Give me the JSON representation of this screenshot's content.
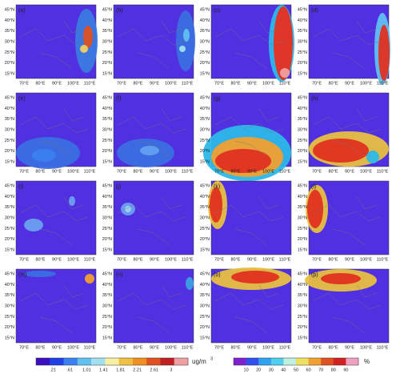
{
  "panels": [
    {
      "label": "(a)"
    },
    {
      "label": "(b)"
    },
    {
      "label": "(c)"
    },
    {
      "label": "(d)"
    },
    {
      "label": "(e)"
    },
    {
      "label": "(f)"
    },
    {
      "label": "(g)"
    },
    {
      "label": "(h)"
    },
    {
      "label": "(i)"
    },
    {
      "label": "(j)"
    },
    {
      "label": "(k)"
    },
    {
      "label": "(l)"
    },
    {
      "label": "(m)"
    },
    {
      "label": "(n)"
    },
    {
      "label": "(o)"
    },
    {
      "label": "(p)"
    }
  ],
  "lat_ticks": [
    "45°N",
    "40°N",
    "35°N",
    "30°N",
    "25°N",
    "20°N",
    "15°N"
  ],
  "lon_ticks": [
    "70°E",
    "80°E",
    "90°E",
    "100°E",
    "110°E"
  ],
  "colorbar_left": {
    "ticks": [
      ".21",
      ".61",
      "1.01",
      "1.41",
      "1.81",
      "2.21",
      "2.61",
      "3"
    ],
    "unit": "ug/m",
    "unit_sup": "3"
  },
  "colorbar_right": {
    "ticks": [
      "10",
      "20",
      "30",
      "40",
      "50",
      "60",
      "70",
      "80",
      "90"
    ],
    "unit": "%"
  }
}
